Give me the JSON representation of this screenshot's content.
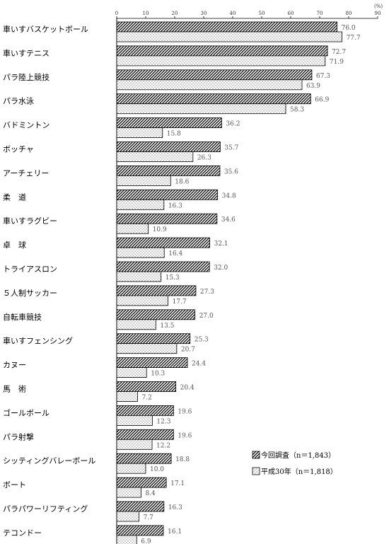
{
  "chart_data": {
    "type": "bar",
    "orientation": "horizontal",
    "unit": "(%)",
    "xlim": [
      0,
      90
    ],
    "ticks": [
      "0",
      "10",
      "20",
      "30",
      "40",
      "50",
      "60",
      "70",
      "80",
      "90"
    ],
    "categories": [
      "車いすバスケットボール",
      "車いすテニス",
      "パラ陸上競技",
      "パラ水泳",
      "バドミントン",
      "ボッチャ",
      "アーチェリー",
      "柔　道",
      "車いすラグビー",
      "卓　球",
      "トライアスロン",
      "５人制サッカー",
      "自転車競技",
      "車いすフェンシング",
      "カヌー",
      "馬　術",
      "ゴールボール",
      "パラ射撃",
      "シッティングバレーボール",
      "ボート",
      "パラパワーリフティング",
      "テコンドー"
    ],
    "series": [
      {
        "name": "今回調査（n＝1,843）",
        "pattern": "hatch",
        "values": [
          76.0,
          72.7,
          67.3,
          66.9,
          36.2,
          35.7,
          35.6,
          34.8,
          34.6,
          32.1,
          32.0,
          27.3,
          27.0,
          25.3,
          24.4,
          20.4,
          19.6,
          19.6,
          18.8,
          17.1,
          16.3,
          16.1
        ],
        "labels": [
          "76.0",
          "72.7",
          "67.3",
          "66.9",
          "36.2",
          "35.7",
          "35.6",
          "34.8",
          "34.6",
          "32.1",
          "32.0",
          "27.3",
          "27.0",
          "25.3",
          "24.4",
          "20.4",
          "19.6",
          "19.6",
          "18.8",
          "17.1",
          "16.3",
          "16.1"
        ]
      },
      {
        "name": "平成30年（n＝1,818）",
        "pattern": "dots",
        "values": [
          77.7,
          71.9,
          63.9,
          58.3,
          15.8,
          26.3,
          18.6,
          16.3,
          10.9,
          16.4,
          15.3,
          17.7,
          13.5,
          20.7,
          10.3,
          7.2,
          12.3,
          12.2,
          10.0,
          8.4,
          7.7,
          6.9
        ],
        "labels": [
          "77.7",
          "71.9",
          "63.9",
          "58.3",
          "15.8",
          "26.3",
          "18.6",
          "16.3",
          "10.9",
          "16.4",
          "15.3",
          "17.7",
          "13.5",
          "20.7",
          "10.3",
          "7.2",
          "12.3",
          "12.2",
          "10.0",
          "8.4",
          "7.7",
          "6.9"
        ]
      }
    ],
    "legend_position": "bottom-right",
    "grid": false
  }
}
